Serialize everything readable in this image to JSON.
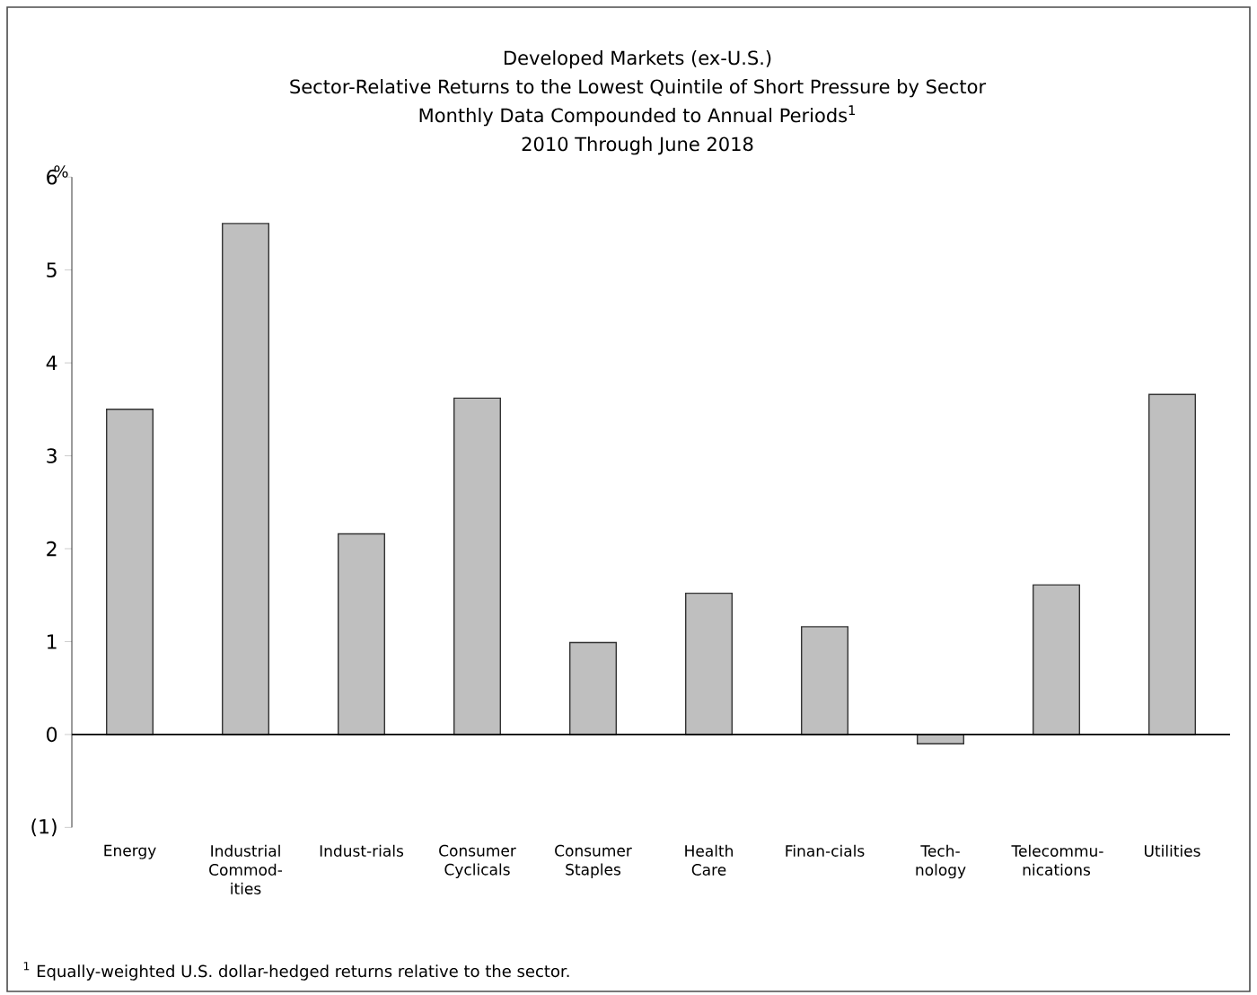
{
  "chart_data": {
    "type": "bar",
    "title": "Developed Markets (ex-U.S.)",
    "subtitle": "Sector-Relative Returns to the Lowest Quintile of Short Pressure by Sector",
    "ylabel": "%",
    "annotations": [
      "Monthly Data Compounded to Annual Periods$^{1}$",
      "2010 Through June 2018",
      "$^{1}$ Equally-weighted U.S. dollar-hedged returns relative to the sector."
    ],
    "categories": [
      "Energy",
      "Industrial Commod-ities",
      "Indust-rials",
      "Consumer Cyclicals",
      "Consumer Staples",
      "Health Care",
      "Finan-cials",
      "Tech-nology",
      "Telecommu-nications",
      "Utilities"
    ],
    "values": [
      3.5,
      5.5,
      2.16,
      3.62,
      0.99,
      1.52,
      1.16,
      -0.1,
      1.61,
      3.66
    ],
    "color": "#bfbfbf",
    "ylim": [
      -1,
      6
    ],
    "yticks": [
      {
        "value": -1,
        "label": "(1)"
      },
      0,
      1,
      2,
      3,
      4,
      5,
      6
    ]
  }
}
